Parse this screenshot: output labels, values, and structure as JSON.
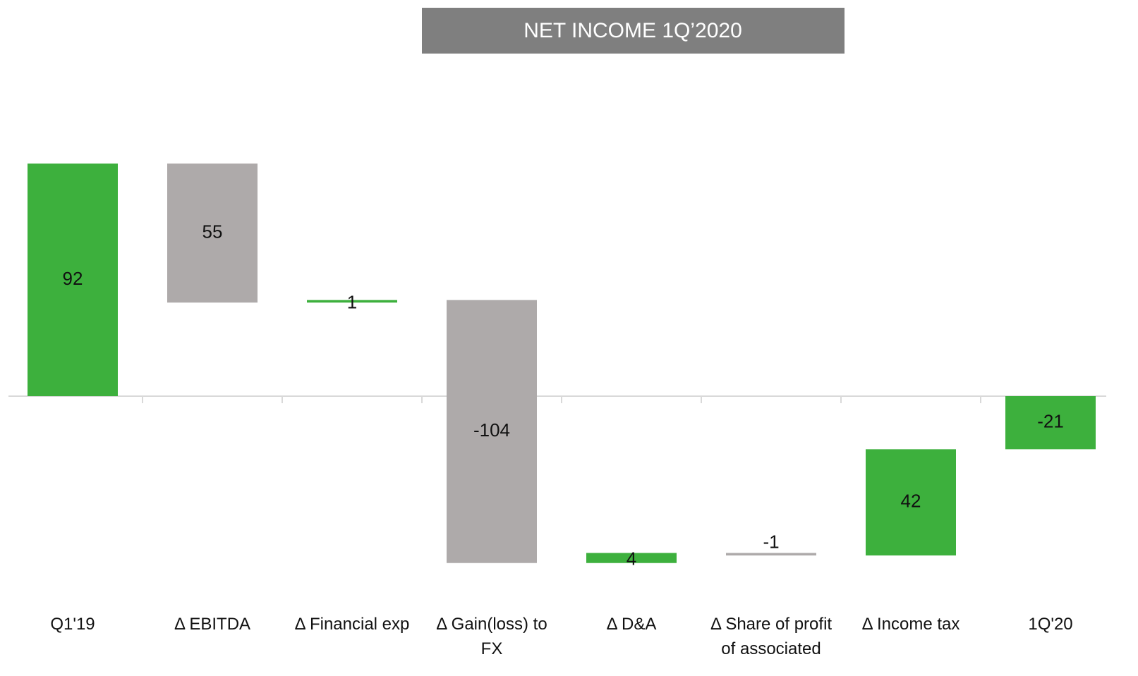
{
  "chart_data": {
    "type": "waterfall",
    "title": "NET INCOME 1Q’2020",
    "categories": [
      "Q1'19",
      "Δ EBITDA",
      "Δ Financial exp",
      "Δ Gain(loss)  to FX",
      "Δ D&A",
      "Δ Share of profit of associated",
      "Δ Income tax",
      "1Q'20"
    ],
    "values": [
      92,
      55,
      1,
      -104,
      4,
      -1,
      42,
      -21
    ],
    "measure": [
      "absolute",
      "decrease",
      "increase",
      "decrease",
      "increase",
      "decrease",
      "increase",
      "absolute"
    ],
    "colors": [
      "#3db03d",
      "#aeaaaa",
      "#3db03d",
      "#aeaaaa",
      "#3db03d",
      "#aeaaaa",
      "#3db03d",
      "#3db03d"
    ],
    "ylim": [
      -110,
      150
    ]
  }
}
